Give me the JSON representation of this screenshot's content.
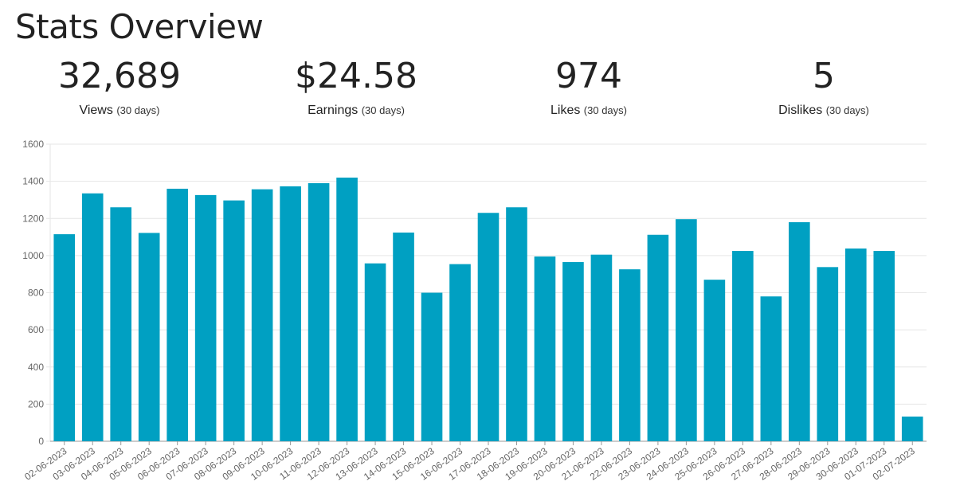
{
  "header": {
    "title": "Stats Overview"
  },
  "stats": [
    {
      "value": "32,689",
      "label": "Views",
      "period": "(30 days)"
    },
    {
      "value": "$24.58",
      "label": "Earnings",
      "period": "(30 days)"
    },
    {
      "value": "974",
      "label": "Likes",
      "period": "(30 days)"
    },
    {
      "value": "5",
      "label": "Dislikes",
      "period": "(30 days)"
    }
  ],
  "colors": {
    "bar": "#00a0c2",
    "grid": "#e6e6e6",
    "axis": "#999999"
  },
  "chart_data": {
    "type": "bar",
    "categories": [
      "02-06-2023",
      "03-06-2023",
      "04-06-2023",
      "05-06-2023",
      "06-06-2023",
      "07-06-2023",
      "08-06-2023",
      "09-06-2023",
      "10-06-2023",
      "11-06-2023",
      "12-06-2023",
      "13-06-2023",
      "14-06-2023",
      "15-06-2023",
      "16-06-2023",
      "17-06-2023",
      "18-06-2023",
      "19-06-2023",
      "20-06-2023",
      "21-06-2023",
      "22-06-2023",
      "23-06-2023",
      "24-06-2023",
      "25-06-2023",
      "26-06-2023",
      "27-06-2023",
      "28-06-2023",
      "29-06-2023",
      "30-06-2023",
      "01-07-2023",
      "02-07-2023"
    ],
    "values": [
      1115,
      1335,
      1260,
      1122,
      1360,
      1326,
      1297,
      1357,
      1373,
      1390,
      1420,
      958,
      1124,
      800,
      954,
      1230,
      1260,
      995,
      965,
      1005,
      926,
      1112,
      1196,
      870,
      1025,
      780,
      1180,
      938,
      1038,
      1025,
      133
    ],
    "ylim": [
      0,
      1600
    ],
    "yticks": [
      0,
      200,
      400,
      600,
      800,
      1000,
      1200,
      1400,
      1600
    ],
    "grid": true,
    "legend": "none",
    "title": "",
    "xlabel": "",
    "ylabel": ""
  }
}
